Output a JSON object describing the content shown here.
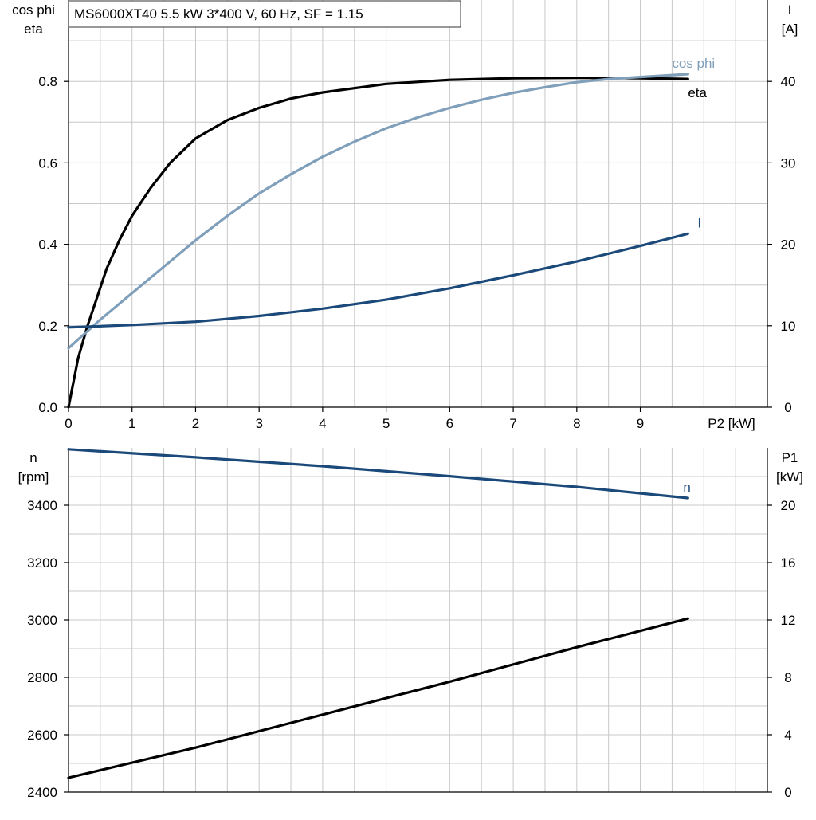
{
  "chart_data": [
    {
      "id": "top",
      "type": "line",
      "title": "MS6000XT40   5.5 kW   3*400 V, 60 Hz, SF = 1.15",
      "xlabel": "P2 [kW]",
      "ylabel_left": [
        "cos phi",
        "eta"
      ],
      "ylabel_right": [
        "I",
        "[A]"
      ],
      "xlim": [
        0,
        11
      ],
      "ylim_left": [
        0,
        1.0
      ],
      "ylim_right": [
        0,
        50
      ],
      "x_ticks": [
        "0",
        "1",
        "2",
        "3",
        "4",
        "5",
        "6",
        "7",
        "8",
        "9"
      ],
      "y_ticks_left": [
        "0.0",
        "0.2",
        "0.4",
        "0.6",
        "0.8"
      ],
      "y_ticks_right": [
        "0",
        "10",
        "20",
        "30",
        "40"
      ],
      "grid": true,
      "series": [
        {
          "name": "eta",
          "axis": "left",
          "color": "#000000",
          "x": [
            0,
            0.15,
            0.3,
            0.45,
            0.6,
            0.8,
            1.0,
            1.3,
            1.6,
            2.0,
            2.5,
            3.0,
            3.5,
            4.0,
            5.0,
            6.0,
            7.0,
            8.0,
            9.0,
            9.75
          ],
          "y": [
            0.0,
            0.12,
            0.2,
            0.27,
            0.34,
            0.41,
            0.47,
            0.54,
            0.6,
            0.66,
            0.705,
            0.735,
            0.758,
            0.773,
            0.794,
            0.804,
            0.808,
            0.809,
            0.808,
            0.806
          ]
        },
        {
          "name": "cos phi",
          "axis": "left",
          "color": "#7f9fba",
          "x": [
            0,
            0.5,
            1.0,
            1.5,
            2.0,
            2.5,
            3.0,
            3.5,
            4.0,
            4.5,
            5.0,
            5.5,
            6.0,
            6.5,
            7.0,
            7.5,
            8.0,
            8.5,
            9.0,
            9.75
          ],
          "y": [
            0.145,
            0.215,
            0.28,
            0.345,
            0.41,
            0.47,
            0.525,
            0.572,
            0.615,
            0.652,
            0.685,
            0.712,
            0.735,
            0.755,
            0.772,
            0.786,
            0.798,
            0.806,
            0.811,
            0.818
          ]
        },
        {
          "name": "I",
          "axis": "right",
          "color": "#1b4a7a",
          "x": [
            0,
            1,
            2,
            3,
            4,
            5,
            6,
            7,
            8,
            9,
            9.75
          ],
          "y": [
            9.8,
            10.1,
            10.5,
            11.2,
            12.1,
            13.2,
            14.6,
            16.2,
            17.9,
            19.8,
            21.3
          ]
        }
      ]
    },
    {
      "id": "bottom",
      "type": "line",
      "ylabel_left": [
        "n",
        "[rpm]"
      ],
      "ylabel_right": [
        "P1",
        "[kW]"
      ],
      "xlim": [
        0,
        11
      ],
      "ylim_left": [
        2400,
        3600
      ],
      "ylim_right": [
        0,
        24
      ],
      "y_ticks_left": [
        "2400",
        "2600",
        "2800",
        "3000",
        "3200",
        "3400"
      ],
      "y_ticks_right": [
        "0",
        "4",
        "8",
        "12",
        "16",
        "20"
      ],
      "grid": true,
      "series": [
        {
          "name": "n",
          "axis": "left",
          "color": "#1b4a7a",
          "x": [
            0,
            2,
            4,
            6,
            8,
            9.75
          ],
          "y": [
            3595,
            3567,
            3536,
            3501,
            3464,
            3425
          ]
        },
        {
          "name": "",
          "axis": "right",
          "color": "#000000",
          "x": [
            0,
            2,
            4,
            6,
            8,
            9.75
          ],
          "y": [
            1.0,
            3.1,
            5.4,
            7.7,
            10.1,
            12.1
          ]
        }
      ]
    }
  ]
}
